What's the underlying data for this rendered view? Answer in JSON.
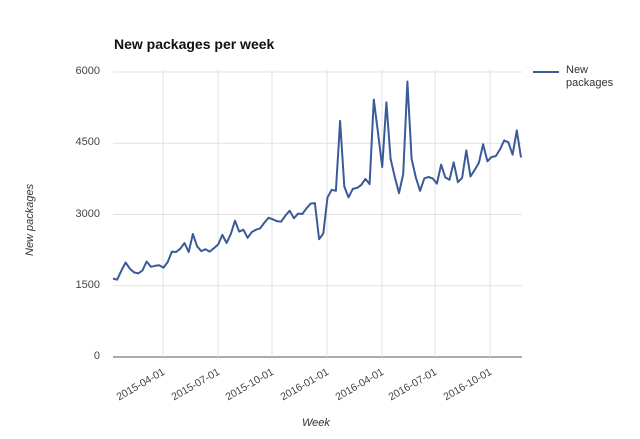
{
  "chart_data": {
    "type": "line",
    "title": "New packages per week",
    "xlabel": "Week",
    "ylabel": "New packages",
    "ylim": [
      0,
      6000
    ],
    "yticks": [
      "0",
      "1500",
      "3000",
      "4500",
      "6000"
    ],
    "xticks": [
      "2015-04-01",
      "2015-07-01",
      "2015-10-01",
      "2016-01-01",
      "2016-04-01",
      "2016-07-01",
      "2016-10-01"
    ],
    "grid": true,
    "legend_position": "right",
    "series": [
      {
        "name": "New packages",
        "color": "#3a5a98",
        "values": [
          1650,
          1630,
          1820,
          1990,
          1860,
          1780,
          1760,
          1820,
          2010,
          1900,
          1920,
          1930,
          1880,
          2000,
          2220,
          2210,
          2280,
          2400,
          2210,
          2590,
          2330,
          2230,
          2270,
          2220,
          2290,
          2370,
          2570,
          2400,
          2590,
          2870,
          2640,
          2680,
          2510,
          2630,
          2680,
          2710,
          2830,
          2930,
          2900,
          2860,
          2850,
          2980,
          3080,
          2920,
          3020,
          3010,
          3130,
          3230,
          3240,
          2480,
          2600,
          3360,
          3520,
          3500,
          4970,
          3590,
          3360,
          3540,
          3560,
          3620,
          3750,
          3640,
          5420,
          4720,
          4000,
          5360,
          4170,
          3790,
          3450,
          3850,
          5800,
          4170,
          3780,
          3500,
          3760,
          3790,
          3760,
          3650,
          4050,
          3780,
          3730,
          4100,
          3680,
          3770,
          4350,
          3800,
          3940,
          4090,
          4480,
          4120,
          4210,
          4230,
          4370,
          4560,
          4520,
          4260,
          4770,
          4200
        ]
      }
    ]
  },
  "legend": {
    "label_line1": "New",
    "label_line2": "packages"
  }
}
